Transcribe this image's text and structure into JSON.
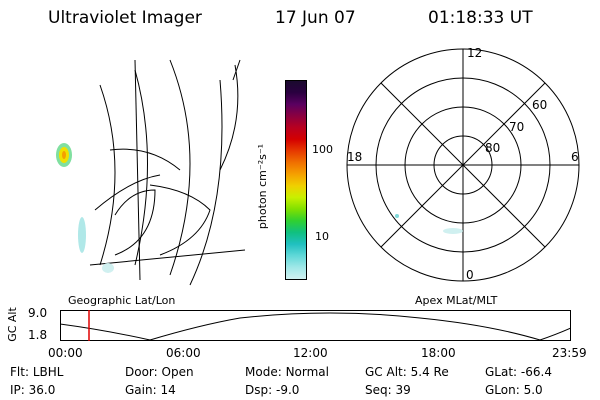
{
  "header": {
    "title": "Ultraviolet Imager",
    "date": "17 Jun 07",
    "time": "01:18:33 UT"
  },
  "geo_panel": {
    "label": "Geographic Lat/Lon"
  },
  "colorbar": {
    "unit_label": "photon cm⁻²s⁻¹",
    "ticks": [
      "100",
      "10"
    ],
    "colors": [
      "#1a0a2e",
      "#2a0040",
      "#5a0060",
      "#8b0040",
      "#b80020",
      "#d40000",
      "#e63900",
      "#f07000",
      "#f5a000",
      "#f0d000",
      "#c8f000",
      "#80e000",
      "#30d030",
      "#10c080",
      "#20c0c0",
      "#60d8d8",
      "#a0e8e8",
      "#d0f0f0"
    ]
  },
  "polar_panel": {
    "label": "Apex MLat/MLT",
    "mlt_labels": {
      "top": "12",
      "bottom": "0",
      "left": "18",
      "right": "6"
    },
    "lat_labels": [
      "60",
      "70",
      "80"
    ]
  },
  "orbit_plot": {
    "ylabel": "GC Alt",
    "y_ticks": [
      "9.0",
      "1.8"
    ],
    "x_ticks": [
      "00:00",
      "06:00",
      "12:00",
      "18:00",
      "23:59"
    ],
    "marker_time": "01:18"
  },
  "status": {
    "row1": [
      {
        "key": "Flt:",
        "value": "LBHL"
      },
      {
        "key": "Door:",
        "value": "Open"
      },
      {
        "key": "Mode:",
        "value": "Normal"
      },
      {
        "key": "GC Alt:",
        "value": "5.4 Re"
      },
      {
        "key": "GLat:",
        "value": "-66.4"
      }
    ],
    "row2": [
      {
        "key": "IP:",
        "value": "36.0"
      },
      {
        "key": "Gain:",
        "value": "14"
      },
      {
        "key": "Dsp:",
        "value": "-9.0"
      },
      {
        "key": "Seq:",
        "value": "39"
      },
      {
        "key": "GLon:",
        "value": "5.0"
      }
    ]
  }
}
